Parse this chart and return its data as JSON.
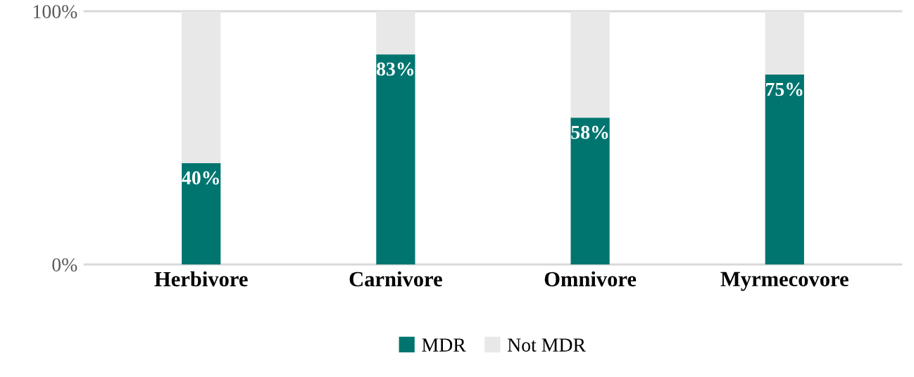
{
  "chart_data": {
    "type": "bar",
    "stacked": true,
    "categories": [
      "Herbivore",
      "Carnivore",
      "Omnivore",
      "Myrmecovore"
    ],
    "series": [
      {
        "name": "MDR",
        "color": "#00756f",
        "values": [
          40,
          83,
          58,
          75
        ],
        "value_labels": [
          "40%",
          "83%",
          "58%",
          "75%"
        ]
      },
      {
        "name": "Not MDR",
        "color": "#e8e8e8",
        "values": [
          60,
          17,
          42,
          25
        ]
      }
    ],
    "ylim": [
      0,
      100
    ],
    "yticks": [
      {
        "value": 0,
        "label": "0%"
      },
      {
        "value": 100,
        "label": "100%"
      }
    ],
    "legend": "bottom"
  }
}
